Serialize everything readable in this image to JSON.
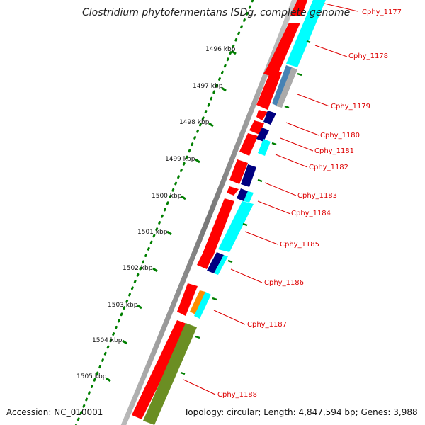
{
  "title": "Clostridium phytofermentans ISDg, complete genome",
  "accession": "Accession: NC_010001",
  "topology": "Topology: circular; Length: 4,847,594 bp; Genes: 3,988",
  "kbp_labels": [
    "1496 kbp",
    "1497 kbp",
    "1498 kbp",
    "1499 kbp",
    "1500 kbp",
    "1501 kbp",
    "1502 kbp",
    "1503 kbp",
    "1504 kbp",
    "1505 kbp"
  ],
  "gene_labels": [
    "Cphy_1177",
    "Cphy_1178",
    "Cphy_1179",
    "Cphy_1180",
    "Cphy_1181",
    "Cphy_1182",
    "Cphy_1183",
    "Cphy_1184",
    "Cphy_1185",
    "Cphy_1186",
    "Cphy_1187",
    "Cphy_1188"
  ],
  "colors": {
    "gene_label": "#dd0000",
    "cds": "#ff0000",
    "cyan": "#00ffff",
    "navy": "#000080",
    "steel": "#4682b4",
    "gray": "#aaaaaa",
    "orange": "#ff8c00",
    "olive": "#6b8e23",
    "tick": "#007f00",
    "backbone": "#888888"
  }
}
